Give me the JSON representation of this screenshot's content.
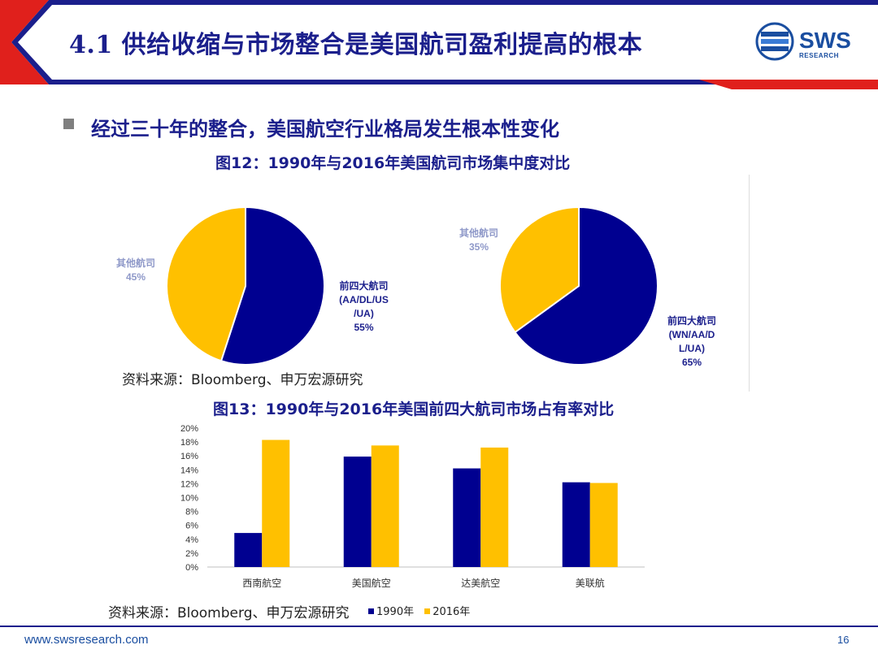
{
  "header": {
    "title": "4.1 供给收缩与市场整合是美国航司盈利提高的根本",
    "logo_text": "SWS",
    "logo_sub": "RESEARCH"
  },
  "subtitle": "经过三十年的整合，美国航空行业格局发生根本性变化",
  "figure12": {
    "caption": "图12：1990年与2016年美国航司市场集中度对比",
    "source": "资料来源：Bloomberg、申万宏源研究"
  },
  "figure13": {
    "caption": "图13：1990年与2016年美国前四大航司市场占有率对比",
    "source": "资料来源：Bloomberg、申万宏源研究"
  },
  "colors": {
    "navy": "#000090",
    "gold": "#ffc000",
    "title": "#1b1f8c"
  },
  "chart_data": [
    {
      "type": "pie",
      "slices": [
        {
          "label_lines": [
            "前四大航司",
            "(AA/DL/US",
            "/UA)",
            "55%"
          ],
          "value": 55,
          "color": "#000090"
        },
        {
          "label_lines": [
            "其他航司",
            "45%"
          ],
          "value": 45,
          "color": "#ffc000"
        }
      ]
    },
    {
      "type": "pie",
      "slices": [
        {
          "label_lines": [
            "前四大航司",
            "(WN/AA/D",
            "L/UA)",
            "65%"
          ],
          "value": 65,
          "color": "#000090"
        },
        {
          "label_lines": [
            "其他航司",
            "35%"
          ],
          "value": 35,
          "color": "#ffc000"
        }
      ]
    },
    {
      "type": "bar",
      "categories": [
        "西南航空",
        "美国航空",
        "达美航空",
        "美联航"
      ],
      "series": [
        {
          "name": "1990年",
          "values": [
            4.9,
            15.9,
            14.2,
            12.2
          ],
          "color": "#000090"
        },
        {
          "name": "2016年",
          "values": [
            18.3,
            17.5,
            17.2,
            12.1
          ],
          "color": "#ffc000"
        }
      ],
      "yticks": [
        "0%",
        "2%",
        "4%",
        "6%",
        "8%",
        "10%",
        "12%",
        "14%",
        "16%",
        "18%",
        "20%"
      ],
      "ylim": [
        0,
        20
      ],
      "legend_position": "bottom"
    }
  ],
  "footer": {
    "url": "www.swsresearch.com",
    "page": "16"
  }
}
